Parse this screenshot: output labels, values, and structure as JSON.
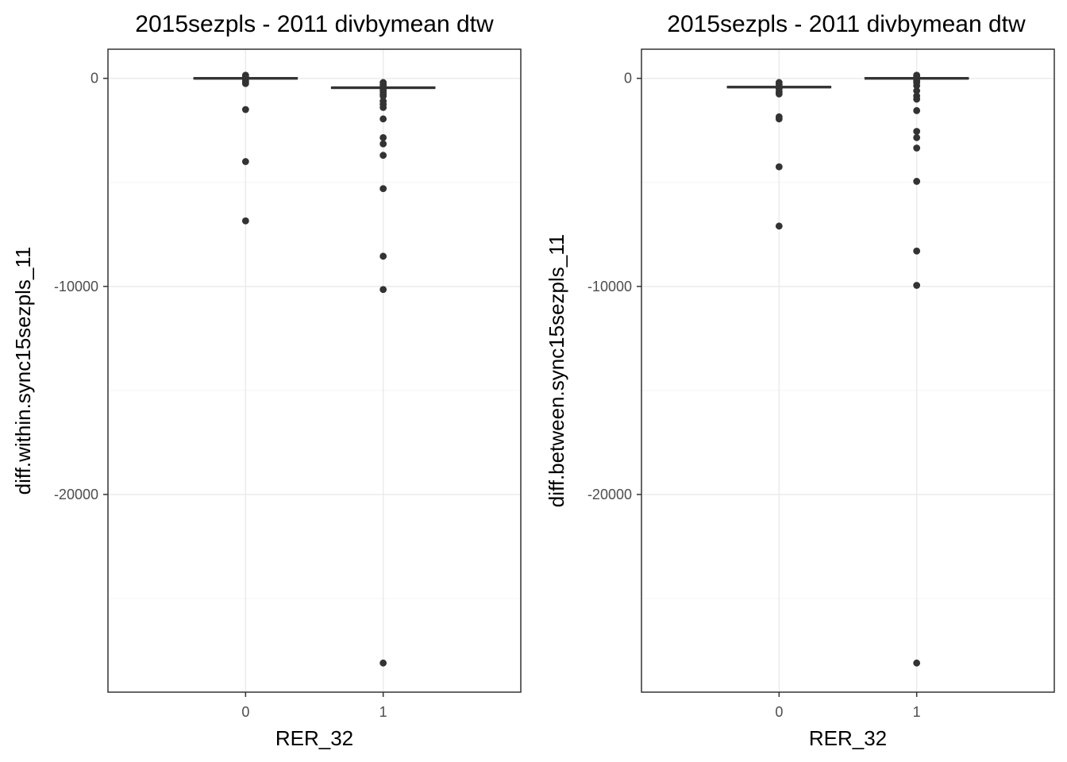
{
  "chart_data": [
    {
      "type": "boxplot",
      "title": "2015sezpls - 2011 divbymean dtw",
      "xlabel": "RER_32",
      "ylabel": "diff.within.sync15sezpls_11",
      "categories": [
        "0",
        "1"
      ],
      "yticks": [
        0,
        -10000,
        -20000
      ],
      "ytick_labels": [
        "0",
        "-10000",
        "-20000"
      ],
      "ylim": [
        -29500,
        1400
      ],
      "grid": true,
      "colors": {
        "box": "#333333",
        "grid_major": "#ebebeb",
        "grid_minor": "#f5f5f5",
        "panel_border": "#333333"
      },
      "boxes": [
        {
          "category": "0",
          "median": 0,
          "q1": -30,
          "q3": 30,
          "outliers": [
            150,
            80,
            20,
            -50,
            -120,
            -180,
            -250,
            -1500,
            -4000,
            -6850
          ]
        },
        {
          "category": "1",
          "median": -450,
          "q1": -480,
          "q3": -420,
          "outliers": [
            -200,
            -300,
            -380,
            -550,
            -650,
            -750,
            -850,
            -1100,
            -1250,
            -1400,
            -1950,
            -2850,
            -3150,
            -3700,
            -5300,
            -8550,
            -10150,
            -28100
          ]
        }
      ]
    },
    {
      "type": "boxplot",
      "title": "2015sezpls - 2011 divbymean dtw",
      "xlabel": "RER_32",
      "ylabel": "diff.between.sync15sezpls_11",
      "categories": [
        "0",
        "1"
      ],
      "yticks": [
        0,
        -10000,
        -20000
      ],
      "ytick_labels": [
        "0",
        "-10000",
        "-20000"
      ],
      "ylim": [
        -29500,
        1400
      ],
      "grid": true,
      "colors": {
        "box": "#333333",
        "grid_major": "#ebebeb",
        "grid_minor": "#f5f5f5",
        "panel_border": "#333333"
      },
      "boxes": [
        {
          "category": "0",
          "median": -420,
          "q1": -450,
          "q3": -390,
          "outliers": [
            -200,
            -300,
            -500,
            -650,
            -750,
            -1850,
            -1950,
            -4250,
            -7100
          ]
        },
        {
          "category": "1",
          "median": 0,
          "q1": -30,
          "q3": 30,
          "outliers": [
            150,
            80,
            -100,
            -200,
            -350,
            -600,
            -850,
            -1000,
            -1550,
            -2550,
            -2850,
            -3350,
            -4950,
            -8300,
            -9950,
            -28100
          ]
        }
      ]
    }
  ]
}
